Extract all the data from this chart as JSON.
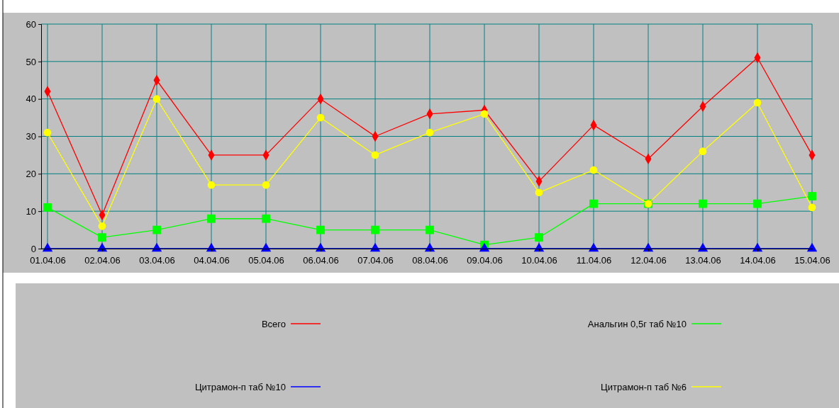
{
  "chart_data": {
    "type": "line",
    "categories": [
      "01.04.06",
      "02.04.06",
      "03.04.06",
      "04.04.06",
      "05.04.06",
      "06.04.06",
      "07.04.06",
      "08.04.06",
      "09.04.06",
      "10.04.06",
      "11.04.06",
      "12.04.06",
      "13.04.06",
      "14.04.06",
      "15.04.06"
    ],
    "ylim": [
      0,
      60
    ],
    "yticks": [
      0,
      10,
      20,
      30,
      40,
      50,
      60
    ],
    "grid": true,
    "legend": "bottom",
    "line_style": "solid",
    "series": [
      {
        "name": "Всего",
        "color": "#ff0000",
        "marker": "diamond",
        "values": [
          42,
          9,
          45,
          25,
          25,
          40,
          30,
          36,
          37,
          18,
          33,
          24,
          38,
          51,
          25
        ]
      },
      {
        "name": "Анальгин 0,5г таб №10",
        "color": "#00ff00",
        "marker": "square",
        "values": [
          11,
          3,
          5,
          8,
          8,
          5,
          5,
          5,
          1,
          3,
          12,
          12,
          12,
          12,
          14
        ]
      },
      {
        "name": "Цитрамон-п таб №10",
        "color": "#0000ff",
        "marker": "triangle",
        "values": [
          0,
          0,
          0,
          0,
          0,
          0,
          0,
          0,
          0,
          0,
          0,
          0,
          0,
          0,
          0
        ]
      },
      {
        "name": "Цитрамон-п таб №6",
        "color": "#ffff00",
        "marker": "circle",
        "values": [
          31,
          6,
          40,
          17,
          17,
          35,
          25,
          31,
          36,
          15,
          21,
          12,
          26,
          39,
          11
        ]
      }
    ]
  }
}
